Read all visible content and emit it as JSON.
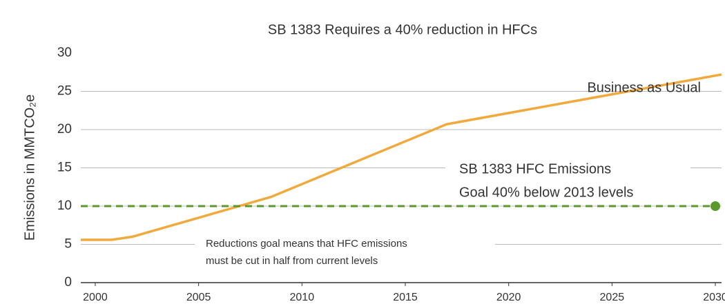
{
  "chart_data": {
    "type": "line",
    "title": "SB 1383 Requires a 40% reduction in HFCs",
    "y_label": "Emissions in MMTCO₂e",
    "xlim": [
      1999.3,
      2030.3
    ],
    "xticks": [
      2000,
      2005,
      2010,
      2015,
      2020,
      2025,
      2030
    ],
    "ylim": [
      0,
      30
    ],
    "yticks": [
      0,
      5,
      10,
      15,
      20,
      25,
      30
    ],
    "grid": true,
    "series": [
      {
        "name": "Business as Usual",
        "color": "#f2a93b",
        "dashed": false,
        "x": [
          1999.3,
          2000.8,
          2001.8,
          2008.5,
          2017.0,
          2030.3
        ],
        "values": [
          5.6,
          5.6,
          6.0,
          11.2,
          20.7,
          27.2
        ]
      },
      {
        "color": "#5a9a2a",
        "dashed": true,
        "end_marker": true,
        "x": [
          1999.3,
          2030
        ],
        "values": [
          10,
          10
        ]
      }
    ],
    "annotations": [
      "SB 1383 HFC Emissions",
      "Goal 40% below 2013 levels",
      "Reductions goal means that HFC emissions",
      "must be cut in half from current levels"
    ]
  }
}
